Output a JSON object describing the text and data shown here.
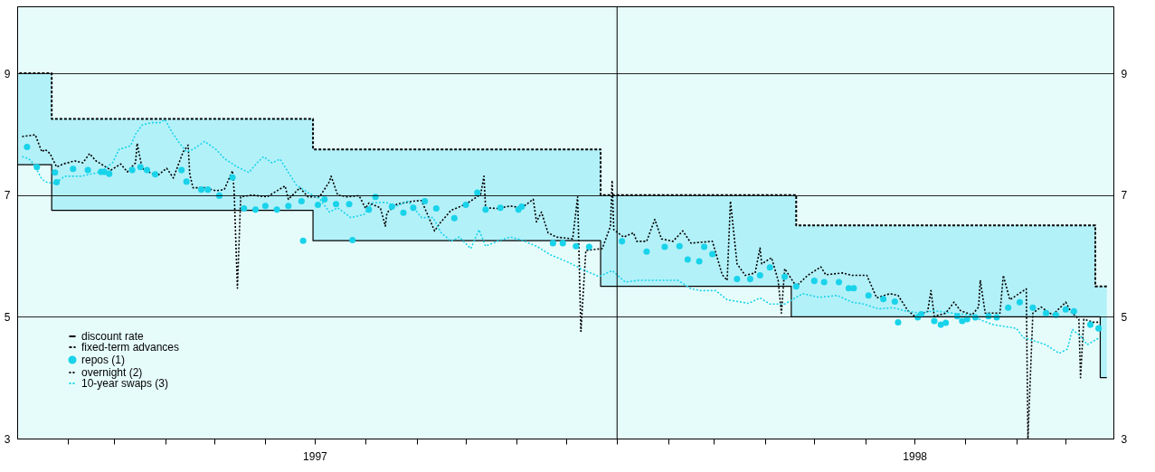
{
  "chart_data": {
    "type": "line",
    "x": [
      "1997-01-01",
      "1997-01-22",
      "1997-06-30",
      "1997-12-22",
      "1998-04-17",
      "1998-04-20",
      "1998-10-19",
      "1998-10-22",
      "1998-10-26"
    ],
    "xlim": [
      "1997-01-01",
      "1998-10-30"
    ],
    "xticks": [
      {
        "value": "1997-02-01",
        "label": null
      },
      {
        "value": "1997-03-01",
        "label": null
      },
      {
        "value": "1997-04-01",
        "label": null
      },
      {
        "value": "1997-05-01",
        "label": null
      },
      {
        "value": "1997-06-01",
        "label": null
      },
      {
        "value": "1997-07-01",
        "label": "1997"
      },
      {
        "value": "1997-08-01",
        "label": null
      },
      {
        "value": "1997-09-01",
        "label": null
      },
      {
        "value": "1997-10-01",
        "label": null
      },
      {
        "value": "1997-11-01",
        "label": null
      },
      {
        "value": "1997-12-01",
        "label": null
      },
      {
        "value": "1998-01-01",
        "label": null
      },
      {
        "value": "1998-02-01",
        "label": null
      },
      {
        "value": "1998-03-01",
        "label": null
      },
      {
        "value": "1998-04-01",
        "label": null
      },
      {
        "value": "1998-05-01",
        "label": null
      },
      {
        "value": "1998-06-01",
        "label": null
      },
      {
        "value": "1998-07-01",
        "label": "1998"
      },
      {
        "value": "1998-08-01",
        "label": null
      },
      {
        "value": "1998-09-01",
        "label": null
      },
      {
        "value": "1998-10-01",
        "label": null
      }
    ],
    "ylim": [
      3,
      10.1
    ],
    "yticks": [
      3,
      5,
      7,
      9
    ],
    "y2lim": [
      3,
      10.1
    ],
    "y2ticks": [
      3,
      5,
      7,
      9
    ],
    "grid": "y",
    "legend": "bottom left",
    "ref_lines": [
      {
        "axis": "x",
        "value": "1998-01-01",
        "color": "#000000"
      }
    ],
    "series": [
      {
        "name": "discount rate",
        "type": "step",
        "color": "#000000",
        "line_style": "solid",
        "values": [
          7.5,
          6.75,
          6.25,
          5.5,
          5.0,
          5.0,
          5.0,
          4.0,
          4.0
        ]
      },
      {
        "name": "fixed-term advances",
        "type": "step",
        "color": "#000000",
        "line_style": "dashed",
        "values": [
          9.0,
          8.25,
          7.75,
          7.0,
          7.0,
          6.5,
          5.5,
          5.5,
          5.5
        ],
        "lower": [
          7.5,
          6.75,
          6.25,
          5.5,
          5.0,
          5.0,
          5.0,
          4.0,
          4.0
        ],
        "upper": [
          9.0,
          8.25,
          7.75,
          7.0,
          7.0,
          6.5,
          5.5,
          5.5,
          5.5
        ]
      },
      {
        "name": "repos (1)",
        "type": "scatter",
        "marker": "circle",
        "color": "#19d3ea",
        "x": [
          "1997-01-07",
          "1997-01-13",
          "1997-01-24",
          "1997-01-25",
          "1997-02-04",
          "1997-02-13",
          "1997-02-21",
          "1997-02-23",
          "1997-02-26",
          "1997-03-12",
          "1997-03-17",
          "1997-03-21",
          "1997-03-26",
          "1997-04-11",
          "1997-04-14",
          "1997-04-23",
          "1997-04-27",
          "1997-05-04",
          "1997-05-12",
          "1997-05-19",
          "1997-05-26",
          "1997-06-01",
          "1997-06-08",
          "1997-06-15",
          "1997-06-23",
          "1997-06-24",
          "1997-07-03",
          "1997-07-07",
          "1997-07-14",
          "1997-07-22",
          "1997-07-24",
          "1997-08-03",
          "1997-08-07",
          "1997-08-17",
          "1997-08-24",
          "1997-08-30",
          "1997-09-06",
          "1997-09-13",
          "1997-09-24",
          "1997-10-01",
          "1997-10-08",
          "1997-10-13",
          "1997-10-22",
          "1997-11-02",
          "1997-11-04",
          "1997-11-23",
          "1997-11-29",
          "1997-12-07",
          "1997-12-15",
          "1998-01-04",
          "1998-01-19",
          "1998-01-30",
          "1998-02-08",
          "1998-02-13",
          "1998-02-20",
          "1998-02-23",
          "1998-02-28",
          "1998-03-15",
          "1998-03-23",
          "1998-03-29",
          "1998-04-04",
          "1998-04-13",
          "1998-04-20",
          "1998-05-01",
          "1998-05-07",
          "1998-05-16",
          "1998-05-22",
          "1998-05-25",
          "1998-06-03",
          "1998-06-12",
          "1998-06-19",
          "1998-06-21",
          "1998-07-03",
          "1998-07-05",
          "1998-07-13",
          "1998-07-17",
          "1998-07-20",
          "1998-07-27",
          "1998-07-30",
          "1998-08-02",
          "1998-08-07",
          "1998-08-15",
          "1998-08-20",
          "1998-08-27",
          "1998-09-03",
          "1998-09-11",
          "1998-09-19",
          "1998-09-25",
          "1998-10-01",
          "1998-10-06",
          "1998-10-16",
          "1998-10-21"
        ],
        "values": [
          7.79,
          7.46,
          7.37,
          7.21,
          7.43,
          7.41,
          7.38,
          7.38,
          7.35,
          7.41,
          7.46,
          7.41,
          7.34,
          7.41,
          7.22,
          7.09,
          7.09,
          6.99,
          7.29,
          6.78,
          6.76,
          6.82,
          6.76,
          6.82,
          6.9,
          6.25,
          6.84,
          6.93,
          6.85,
          6.85,
          6.26,
          6.76,
          6.97,
          6.81,
          6.71,
          6.79,
          6.9,
          6.78,
          6.62,
          6.84,
          7.04,
          6.76,
          6.79,
          6.76,
          6.81,
          6.21,
          6.21,
          6.16,
          6.15,
          6.24,
          6.07,
          6.15,
          6.16,
          5.94,
          5.91,
          6.15,
          6.03,
          5.62,
          5.62,
          5.68,
          5.81,
          5.66,
          5.5,
          5.59,
          5.57,
          5.57,
          5.47,
          5.47,
          5.35,
          5.29,
          5.25,
          4.91,
          4.99,
          5.04,
          4.93,
          4.87,
          4.9,
          5.01,
          4.93,
          4.96,
          4.99,
          5.01,
          4.99,
          5.15,
          5.24,
          5.15,
          5.06,
          5.03,
          5.12,
          5.09,
          4.87,
          4.81
        ]
      },
      {
        "name": "overnight (2)",
        "type": "line",
        "line_style": "dotted",
        "color": "#000000",
        "x": [
          "1997-01-04",
          "1997-01-12",
          "1997-01-16",
          "1997-01-18",
          "1997-01-21",
          "1997-01-25",
          "1997-01-29",
          "1997-02-05",
          "1997-02-10",
          "1997-02-14",
          "1997-02-18",
          "1997-02-27",
          "1997-03-05",
          "1997-03-09",
          "1997-03-14",
          "1997-03-15",
          "1997-03-16",
          "1997-03-18",
          "1997-03-27",
          "1997-04-02",
          "1997-04-06",
          "1997-04-12",
          "1997-04-15",
          "1997-04-16",
          "1997-04-18",
          "1997-04-25",
          "1997-05-02",
          "1997-05-07",
          "1997-05-12",
          "1997-05-13",
          "1997-05-15",
          "1997-05-17",
          "1997-05-24",
          "1997-06-02",
          "1997-06-13",
          "1997-06-15",
          "1997-06-22",
          "1997-06-27",
          "1997-07-04",
          "1997-07-10",
          "1997-07-11",
          "1997-07-15",
          "1997-07-21",
          "1997-07-28",
          "1997-08-01",
          "1997-08-03",
          "1997-08-10",
          "1997-08-13",
          "1997-08-14",
          "1997-08-20",
          "1997-08-30",
          "1997-09-04",
          "1997-09-12",
          "1997-09-15",
          "1997-09-22",
          "1997-10-01",
          "1997-10-10",
          "1997-10-12",
          "1997-10-13",
          "1997-10-20",
          "1997-10-28",
          "1997-11-04",
          "1997-11-11",
          "1997-11-13",
          "1997-11-16",
          "1997-11-20",
          "1997-11-25",
          "1997-12-05",
          "1997-12-08",
          "1997-12-10",
          "1997-12-13",
          "1997-12-23",
          "1997-12-28",
          "1997-12-29",
          "1997-12-30",
          "1998-01-05",
          "1998-01-11",
          "1998-01-13",
          "1998-01-19",
          "1998-01-24",
          "1998-01-28",
          "1998-02-04",
          "1998-02-10",
          "1998-02-15",
          "1998-02-28",
          "1998-03-06",
          "1998-03-09",
          "1998-03-11",
          "1998-03-15",
          "1998-03-20",
          "1998-03-26",
          "1998-03-29",
          "1998-03-30",
          "1998-04-05",
          "1998-04-09",
          "1998-04-11",
          "1998-04-13",
          "1998-04-20",
          "1998-04-27",
          "1998-05-05",
          "1998-05-08",
          "1998-05-18",
          "1998-05-24",
          "1998-06-02",
          "1998-06-08",
          "1998-06-16",
          "1998-06-21",
          "1998-06-27",
          "1998-07-01",
          "1998-07-09",
          "1998-07-11",
          "1998-07-13",
          "1998-07-20",
          "1998-07-25",
          "1998-07-29",
          "1998-08-05",
          "1998-08-09",
          "1998-08-10",
          "1998-08-13",
          "1998-08-22",
          "1998-08-24",
          "1998-08-28",
          "1998-09-07",
          "1998-09-08",
          "1998-09-11",
          "1998-09-16",
          "1998-09-23",
          "1998-10-01",
          "1998-10-04",
          "1998-10-09",
          "1998-10-10",
          "1998-10-12",
          "1998-10-18",
          "1998-10-21"
        ],
        "values": [
          7.96,
          7.99,
          7.71,
          7.75,
          7.68,
          7.46,
          7.51,
          7.56,
          7.53,
          7.68,
          7.56,
          7.41,
          7.51,
          7.38,
          7.53,
          7.85,
          7.71,
          7.44,
          7.31,
          7.44,
          7.28,
          7.71,
          7.82,
          7.34,
          7.12,
          7.12,
          7.07,
          7.09,
          7.4,
          7.07,
          5.47,
          6.97,
          7.0,
          6.97,
          7.15,
          6.93,
          7.12,
          6.97,
          6.97,
          7.22,
          7.31,
          7.0,
          6.97,
          6.99,
          6.78,
          6.87,
          6.79,
          6.49,
          6.71,
          6.85,
          6.9,
          6.91,
          6.41,
          6.53,
          6.75,
          6.85,
          7.01,
          7.31,
          6.79,
          6.78,
          6.82,
          6.79,
          6.93,
          6.56,
          6.72,
          6.38,
          6.31,
          6.28,
          6.97,
          4.76,
          6.09,
          6.12,
          6.49,
          7.24,
          6.43,
          6.31,
          6.38,
          6.24,
          6.24,
          6.6,
          6.28,
          6.24,
          6.41,
          6.21,
          6.24,
          5.69,
          5.6,
          6.9,
          5.87,
          5.68,
          5.72,
          6.13,
          5.87,
          5.97,
          5.6,
          5.06,
          5.79,
          5.5,
          5.68,
          5.82,
          5.69,
          5.72,
          5.68,
          5.68,
          5.31,
          5.38,
          5.35,
          5.1,
          5.01,
          5.09,
          5.43,
          5.01,
          5.06,
          5.24,
          5.1,
          5.03,
          5.16,
          5.6,
          5.06,
          5.06,
          5.68,
          5.28,
          5.46,
          3.0,
          5.06,
          5.16,
          5.03,
          5.24,
          5.09,
          4.96,
          4.0,
          4.96,
          4.91,
          4.91
        ]
      },
      {
        "name": "10-year swaps (3)",
        "type": "line",
        "line_style": "dotted",
        "color": "#19d3ea",
        "x": [
          "1997-01-04",
          "1997-01-08",
          "1997-01-11",
          "1997-01-16",
          "1997-01-19",
          "1997-01-24",
          "1997-01-30",
          "1997-02-09",
          "1997-02-14",
          "1997-02-21",
          "1997-02-28",
          "1997-03-04",
          "1997-03-11",
          "1997-03-14",
          "1997-03-18",
          "1997-03-24",
          "1997-03-29",
          "1997-04-01",
          "1997-04-05",
          "1997-04-09",
          "1997-04-14",
          "1997-04-18",
          "1997-04-25",
          "1997-05-02",
          "1997-05-07",
          "1997-05-15",
          "1997-05-22",
          "1997-05-27",
          "1997-05-31",
          "1997-06-05",
          "1997-06-10",
          "1997-06-15",
          "1997-06-20",
          "1997-06-27",
          "1997-07-04",
          "1997-07-10",
          "1997-07-15",
          "1997-07-23",
          "1997-07-31",
          "1997-08-05",
          "1997-08-13",
          "1997-08-20",
          "1997-08-27",
          "1997-09-04",
          "1997-09-11",
          "1997-09-16",
          "1997-09-22",
          "1997-09-27",
          "1997-10-04",
          "1997-10-09",
          "1997-10-13",
          "1997-10-20",
          "1997-10-28",
          "1997-11-04",
          "1997-11-13",
          "1997-11-22",
          "1997-12-02",
          "1997-12-10",
          "1997-12-21",
          "1997-12-29",
          "1998-01-06",
          "1998-01-14",
          "1998-01-27",
          "1998-02-07",
          "1998-02-15",
          "1998-02-21",
          "1998-03-02",
          "1998-03-09",
          "1998-03-22",
          "1998-03-29",
          "1998-04-04",
          "1998-04-13",
          "1998-04-24",
          "1998-05-04",
          "1998-05-15",
          "1998-05-24",
          "1998-05-31",
          "1998-06-09",
          "1998-06-18",
          "1998-06-25",
          "1998-07-04",
          "1998-07-13",
          "1998-07-24",
          "1998-08-04",
          "1998-08-11",
          "1998-08-18",
          "1998-08-25",
          "1998-09-01",
          "1998-09-05",
          "1998-09-10",
          "1998-09-19",
          "1998-09-27",
          "1998-10-02",
          "1998-10-05",
          "1998-10-11",
          "1998-10-14",
          "1998-10-21"
        ],
        "values": [
          7.63,
          7.6,
          7.51,
          7.26,
          7.21,
          7.19,
          7.31,
          7.31,
          7.34,
          7.38,
          7.53,
          7.75,
          7.81,
          8.0,
          8.15,
          8.19,
          8.19,
          8.24,
          8.04,
          7.88,
          7.71,
          7.75,
          7.88,
          7.75,
          7.6,
          7.46,
          7.37,
          7.53,
          7.63,
          7.53,
          7.59,
          7.37,
          7.16,
          7.04,
          6.94,
          6.72,
          6.79,
          6.63,
          6.68,
          6.87,
          6.88,
          6.82,
          6.9,
          6.63,
          6.63,
          6.38,
          6.24,
          6.31,
          6.12,
          6.43,
          6.16,
          6.24,
          6.31,
          6.26,
          6.16,
          6.01,
          5.9,
          5.79,
          5.66,
          5.76,
          5.57,
          5.6,
          5.6,
          5.6,
          5.46,
          5.43,
          5.43,
          5.28,
          5.22,
          5.31,
          5.21,
          5.21,
          5.38,
          5.32,
          5.35,
          5.24,
          5.21,
          5.13,
          5.15,
          5.1,
          5.06,
          5.1,
          5.06,
          5.03,
          4.94,
          4.87,
          4.84,
          4.81,
          4.66,
          4.62,
          4.54,
          4.4,
          4.47,
          4.79,
          4.66,
          4.54,
          4.65
        ]
      }
    ]
  }
}
